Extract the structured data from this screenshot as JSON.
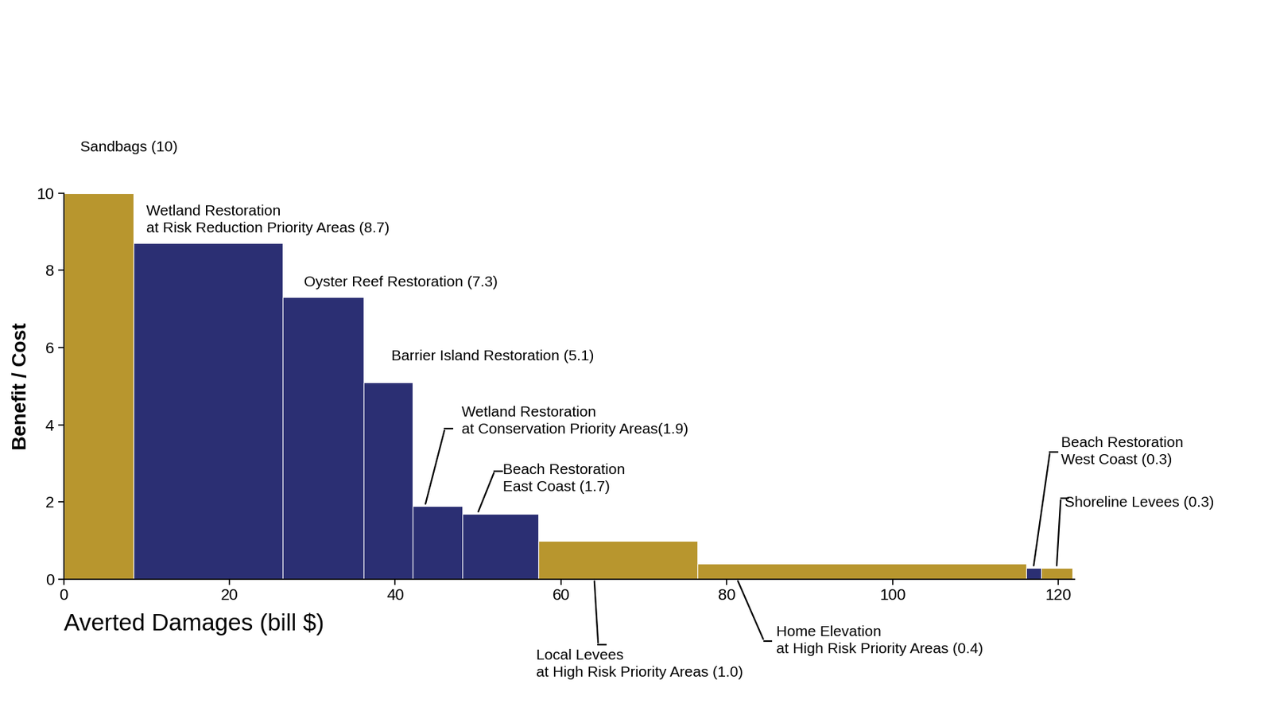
{
  "chart_data": {
    "type": "bar",
    "xlabel": "Averted Damages (bill $)",
    "ylabel": "Benefit / Cost",
    "categories": [
      "Sandbags (10)",
      "Wetland Restoration\nat Risk Reduction Priority Areas (8.7)",
      "Oyster Reef Restoration (7.3)",
      "Barrier Island Restoration (5.1)",
      "Wetland Restoration\nat Conservation Priority Areas(1.9)",
      "Beach Restoration\nEast Coast (1.7)",
      "Local Levees\nat High Risk Priority Areas (1.0)",
      "Home Elevation\nat High Risk Priority Areas (0.4)",
      "Beach Restoration\nWest Coast (0.3)",
      "Shoreline Levees (0.3)"
    ],
    "values": [
      10,
      8.7,
      7.3,
      5.1,
      1.9,
      1.7,
      1.0,
      0.4,
      0.3,
      0.3
    ],
    "widths": [
      8.4,
      18.0,
      9.8,
      5.9,
      6.0,
      9.2,
      19.2,
      39.6,
      1.8,
      3.8
    ],
    "colors": [
      "#B8962E",
      "#2B2F73",
      "#2B2F73",
      "#2B2F73",
      "#2B2F73",
      "#2B2F73",
      "#B8962E",
      "#B8962E",
      "#2B2F73",
      "#B8962E"
    ],
    "xlim": [
      0,
      122
    ],
    "xticks": [
      0,
      20,
      40,
      60,
      80,
      100,
      120
    ],
    "ylim": [
      0,
      10
    ],
    "yticks": [
      0,
      2,
      4,
      6,
      8,
      10
    ]
  }
}
